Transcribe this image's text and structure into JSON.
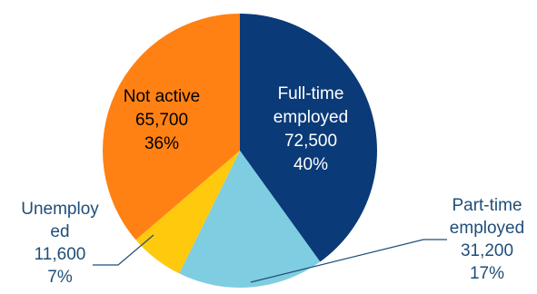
{
  "chart_data": {
    "type": "pie",
    "slices": [
      {
        "name": "Full-time employed",
        "value": 72500,
        "percent": "40%",
        "color": "#0b3a78",
        "label_lines": [
          "Full-time",
          "employed",
          "72,500",
          "40%"
        ],
        "label_color": "#ffffff"
      },
      {
        "name": "Part-time employed",
        "value": 31200,
        "percent": "17%",
        "color": "#7fcde0",
        "label_lines": [
          "Part-time",
          "employed",
          "31,200",
          "17%"
        ],
        "label_color": "#1f4e79"
      },
      {
        "name": "Unemployed",
        "value": 11600,
        "percent": "7%",
        "color": "#ffc90e",
        "label_lines": [
          "Unemploy",
          "ed",
          "11,600",
          "7%"
        ],
        "label_color": "#1f4e79"
      },
      {
        "name": "Not active",
        "value": 65700,
        "percent": "36%",
        "color": "#ff8114",
        "label_lines": [
          "Not active",
          "65,700",
          "36%"
        ],
        "label_color": "#000000"
      }
    ],
    "start_angle_deg": 0,
    "direction": "clockwise",
    "legend": "none"
  }
}
